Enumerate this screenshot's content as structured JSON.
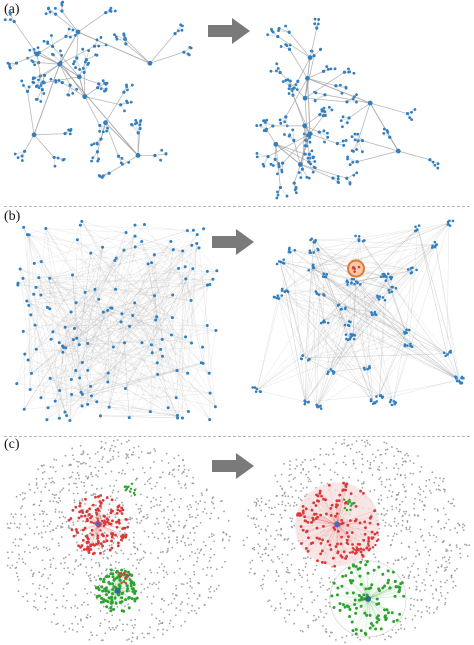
{
  "panels": [
    {
      "label": "(a)",
      "style": "tree"
    },
    {
      "label": "(b)",
      "style": "mesh"
    },
    {
      "label": "(c)",
      "style": "cluster"
    }
  ],
  "colors": {
    "node_blue": "#2f7fc1",
    "edge_gray": "#9a9a9a",
    "node_gray": "#8c8c8c",
    "node_red": "#d83a3a",
    "node_green": "#2fa32f",
    "arrow_gray": "#7a7a7a",
    "highlight_orange": "#e07a2e",
    "divider": "#b8b8b8"
  }
}
